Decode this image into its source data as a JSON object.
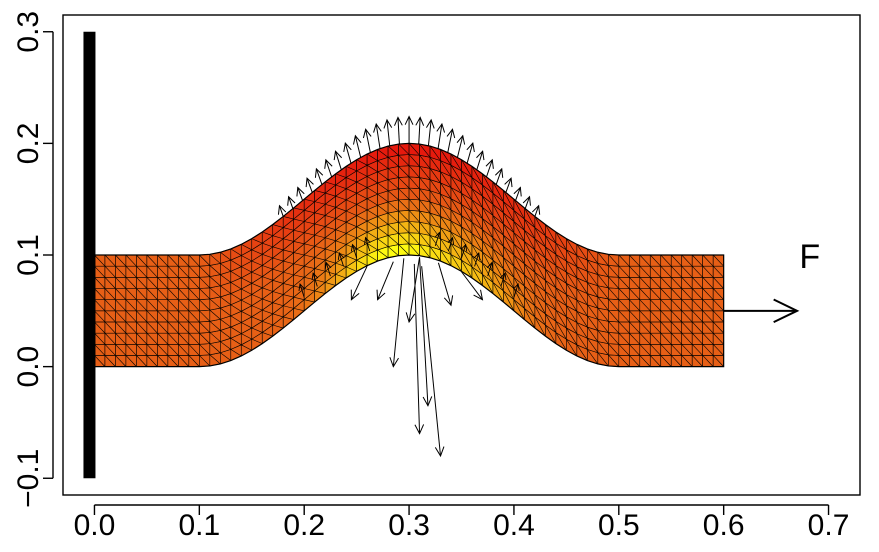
{
  "chart_data": {
    "type": "heatmap",
    "title": "",
    "xlabel": "",
    "ylabel": "",
    "xlim": [
      -0.03,
      0.73
    ],
    "ylim": [
      -0.115,
      0.315
    ],
    "x_ticks": [
      0.0,
      0.1,
      0.2,
      0.3,
      0.4,
      0.5,
      0.6,
      0.7
    ],
    "x_tick_labels": [
      "0.0",
      "0.1",
      "0.2",
      "0.3",
      "0.4",
      "0.5",
      "0.6",
      "0.7"
    ],
    "y_ticks": [
      -0.1,
      0.0,
      0.1,
      0.2,
      0.3
    ],
    "y_tick_labels": [
      "−0.1",
      "0.0",
      "0.1",
      "0.2",
      "0.3"
    ],
    "grid": false,
    "wall": {
      "x": 0.0,
      "y_range": [
        -0.1,
        0.3
      ],
      "color": "#000000"
    },
    "beam": {
      "x_range": [
        0.0,
        0.6
      ],
      "thickness": 0.1,
      "bottom_centerline": "y = 0 for x<0.1 and x>0.5; y = 0.05*(1 - cos(pi*(x-0.1)/0.2)) for 0.1<=x<=0.5",
      "peak": {
        "x": 0.3,
        "y_bottom": 0.1,
        "y_top": 0.2
      },
      "mesh_columns": 60,
      "mesh_rows": 10,
      "colors": {
        "base": "#e75f16",
        "hot_red": "#e6180d",
        "hot_yellow": "#ffff12",
        "edge": "#000000"
      }
    },
    "force": {
      "label": "F",
      "arrow_from": [
        0.6,
        0.05
      ],
      "arrow_to": [
        0.67,
        0.05
      ],
      "label_position": [
        0.675,
        0.1
      ]
    },
    "stress_arrows": {
      "inner": [
        {
          "from": [
            0.31,
            0.098
          ],
          "to": [
            0.3,
            0.04
          ]
        },
        {
          "from": [
            0.31,
            0.098
          ],
          "to": [
            0.318,
            -0.035
          ]
        },
        {
          "from": [
            0.312,
            0.09
          ],
          "to": [
            0.33,
            -0.08
          ]
        },
        {
          "from": [
            0.305,
            0.092
          ],
          "to": [
            0.31,
            -0.06
          ]
        },
        {
          "from": [
            0.295,
            0.097
          ],
          "to": [
            0.285,
            0.0
          ]
        },
        {
          "from": [
            0.285,
            0.094
          ],
          "to": [
            0.27,
            0.06
          ]
        },
        {
          "from": [
            0.328,
            0.093
          ],
          "to": [
            0.34,
            0.055
          ]
        },
        {
          "from": [
            0.26,
            0.09
          ],
          "to": [
            0.245,
            0.06
          ]
        },
        {
          "from": [
            0.35,
            0.085
          ],
          "to": [
            0.37,
            0.06
          ]
        }
      ]
    }
  }
}
